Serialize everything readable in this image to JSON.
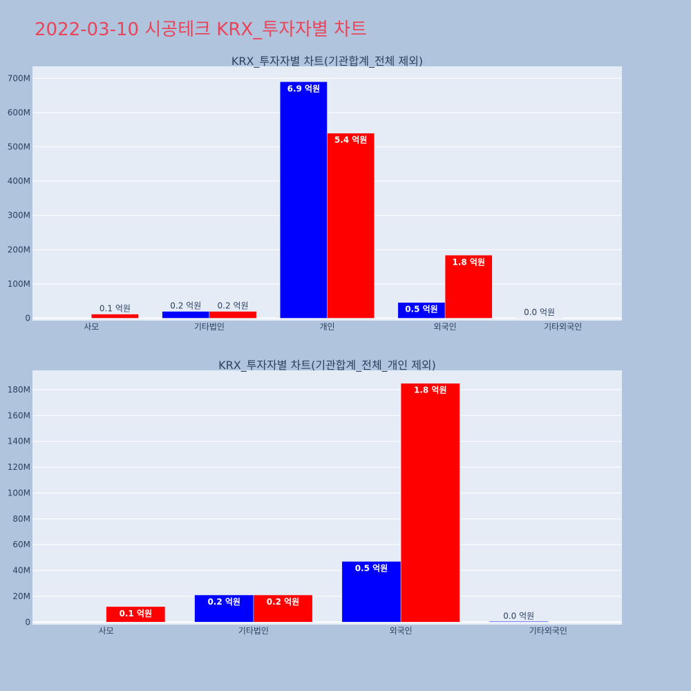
{
  "page": {
    "title": "2022-03-10 시공테크 KRX_투자자별 차트"
  },
  "colors": {
    "page_background": "#b0c4de",
    "plot_background": "#e5ecf6",
    "buy": "#0000ff",
    "sell": "#ff0000",
    "title": "#e8455a"
  },
  "chart_data": [
    {
      "type": "bar",
      "title": "KRX_투자자별 차트(기관합계_전체 제외)",
      "categories": [
        "사모",
        "기타법인",
        "개인",
        "외국인",
        "기타외국인"
      ],
      "series": [
        {
          "color": "#0000ff",
          "values": [
            0,
            20000000,
            690000000,
            46000000,
            1000000
          ],
          "labels": [
            "",
            "0.2 억원",
            "6.9 억원",
            "0.5 억원",
            "0.0 억원"
          ]
        },
        {
          "color": "#ff0000",
          "values": [
            12000000,
            20000000,
            540000000,
            184000000,
            0
          ],
          "labels": [
            "0.1 억원",
            "0.2 억원",
            "5.4 억원",
            "1.8 억원",
            ""
          ]
        }
      ],
      "ylim": [
        -7000000,
        735000000
      ],
      "yticks": [
        0,
        100000000,
        200000000,
        300000000,
        400000000,
        500000000,
        600000000,
        700000000
      ],
      "ytick_labels": [
        "0",
        "100M",
        "200M",
        "300M",
        "400M",
        "500M",
        "600M",
        "700M"
      ],
      "grid": true
    },
    {
      "type": "bar",
      "title": "KRX_투자자별 차트(기관합계_전체_개인 제외)",
      "categories": [
        "사모",
        "기타법인",
        "외국인",
        "기타외국인"
      ],
      "series": [
        {
          "color": "#0000ff",
          "values": [
            0,
            21000000,
            47000000,
            500000
          ],
          "labels": [
            "",
            "0.2 억원",
            "0.5 억원",
            "0.0 억원"
          ]
        },
        {
          "color": "#ff0000",
          "values": [
            12000000,
            21000000,
            185000000,
            0
          ],
          "labels": [
            "0.1 억원",
            "0.2 억원",
            "1.8 억원",
            ""
          ]
        }
      ],
      "ylim": [
        -2000000,
        195000000
      ],
      "yticks": [
        0,
        20000000,
        40000000,
        60000000,
        80000000,
        100000000,
        120000000,
        140000000,
        160000000,
        180000000
      ],
      "ytick_labels": [
        "0",
        "20M",
        "40M",
        "60M",
        "80M",
        "100M",
        "120M",
        "140M",
        "160M",
        "180M"
      ],
      "grid": true
    }
  ]
}
